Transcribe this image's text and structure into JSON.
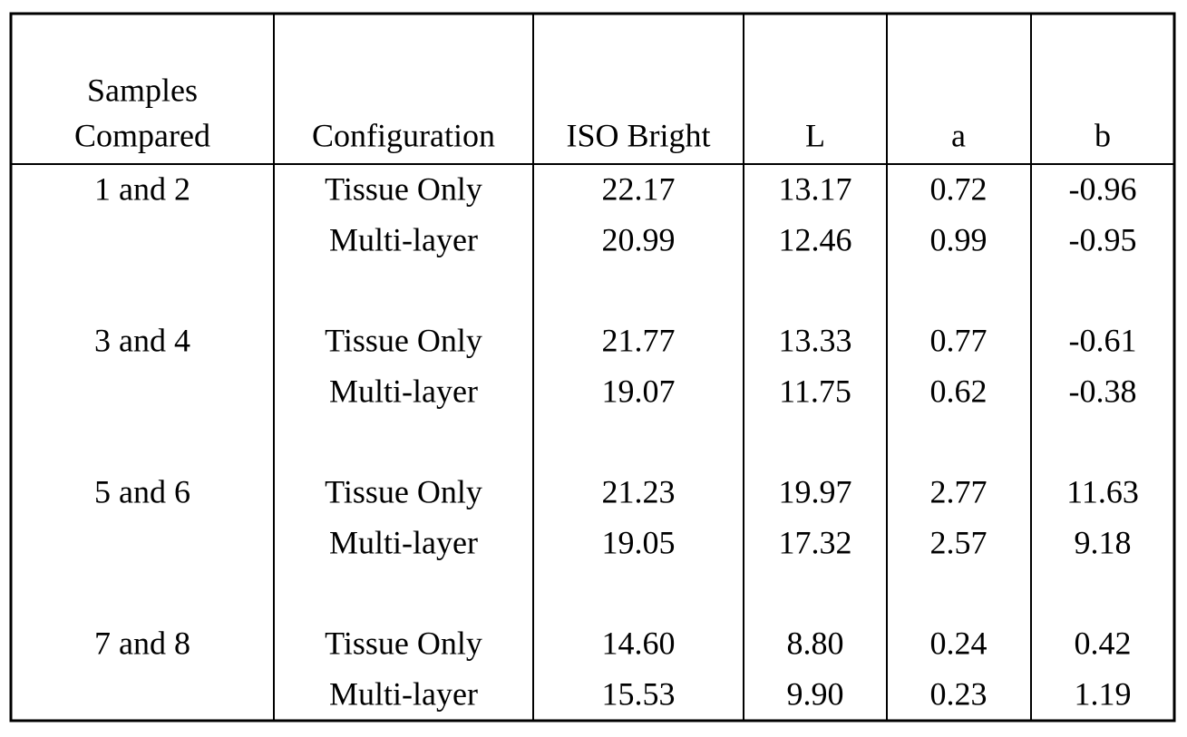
{
  "table": {
    "header": [
      [
        "Samples",
        "Compared"
      ],
      [
        "Configuration"
      ],
      [
        "ISO Bright"
      ],
      [
        "L"
      ],
      [
        "a"
      ],
      [
        "b"
      ]
    ],
    "groups": [
      {
        "samples": "1 and 2",
        "rows": [
          [
            "Tissue Only",
            "22.17",
            "13.17",
            "0.72",
            "-0.96"
          ],
          [
            "Multi-layer",
            "20.99",
            "12.46",
            "0.99",
            "-0.95"
          ]
        ]
      },
      {
        "samples": "3 and 4",
        "rows": [
          [
            "Tissue Only",
            "21.77",
            "13.33",
            "0.77",
            "-0.61"
          ],
          [
            "Multi-layer",
            "19.07",
            "11.75",
            "0.62",
            "-0.38"
          ]
        ]
      },
      {
        "samples": "5 and 6",
        "rows": [
          [
            "Tissue Only",
            "21.23",
            "19.97",
            "2.77",
            "11.63"
          ],
          [
            "Multi-layer",
            "19.05",
            "17.32",
            "2.57",
            "9.18"
          ]
        ]
      },
      {
        "samples": "7 and 8",
        "rows": [
          [
            "Tissue Only",
            "14.60",
            "8.80",
            "0.24",
            "0.42"
          ],
          [
            "Multi-layer",
            "15.53",
            "9.90",
            "0.23",
            "1.19"
          ]
        ]
      }
    ]
  }
}
